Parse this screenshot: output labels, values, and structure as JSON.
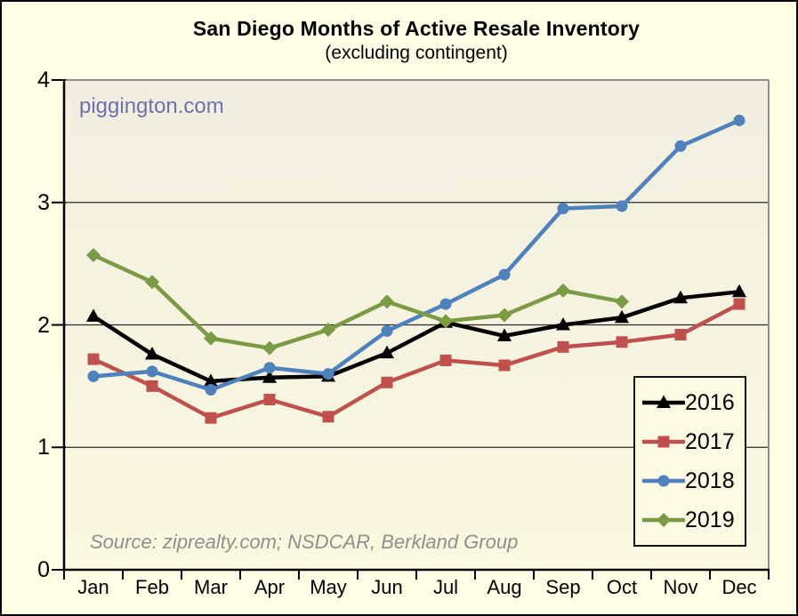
{
  "watermark": "piggington.com",
  "source_note": "Source: ziprealty.com; NSDCAR, Berkland Group",
  "colors": {
    "background": "#FFFFE6",
    "plot_bg_top": "#F1EEE1",
    "plot_bg_bottom": "#FAF9DF",
    "gridline": "#2B2B2B",
    "axis": "#000000",
    "frame": "#8F8F8F",
    "watermark": "#6C71AD",
    "source_text": "#8F8F8F",
    "legend_background": "#FBFAE3",
    "series_2016": "#000000",
    "series_2017": "#C0504D",
    "series_2018": "#4F81BD",
    "series_2019": "#7B9A44"
  },
  "chart_data": {
    "type": "line",
    "title": "San Diego Months of Active Resale Inventory",
    "subtitle": "(excluding contingent)",
    "categories": [
      "Jan",
      "Feb",
      "Mar",
      "Apr",
      "May",
      "Jun",
      "Jul",
      "Aug",
      "Sep",
      "Oct",
      "Nov",
      "Dec"
    ],
    "xlabel": "",
    "ylabel": "",
    "ylim": [
      0,
      4
    ],
    "y_ticks": [
      0,
      1,
      2,
      3,
      4
    ],
    "grid": "horizontal-y",
    "legend_position": "inside-bottom-right",
    "legend_entries": [
      "2016",
      "2017",
      "2018",
      "2019"
    ],
    "series": [
      {
        "name": "2016",
        "marker": "triangle",
        "color": "#000000",
        "values": [
          2.07,
          1.76,
          1.54,
          1.57,
          1.58,
          1.77,
          2.02,
          1.91,
          2.0,
          2.06,
          2.22,
          2.27
        ]
      },
      {
        "name": "2017",
        "marker": "square",
        "color": "#C0504D",
        "values": [
          1.72,
          1.5,
          1.24,
          1.39,
          1.25,
          1.53,
          1.71,
          1.67,
          1.82,
          1.86,
          1.92,
          2.17
        ]
      },
      {
        "name": "2018",
        "marker": "circle",
        "color": "#4F81BD",
        "values": [
          1.58,
          1.62,
          1.47,
          1.65,
          1.6,
          1.95,
          2.17,
          2.41,
          2.95,
          2.97,
          3.46,
          3.67
        ]
      },
      {
        "name": "2019",
        "marker": "diamond",
        "color": "#7B9A44",
        "values": [
          2.57,
          2.35,
          1.89,
          1.81,
          1.96,
          2.19,
          2.03,
          2.08,
          2.28,
          2.19,
          null,
          null
        ]
      }
    ]
  }
}
